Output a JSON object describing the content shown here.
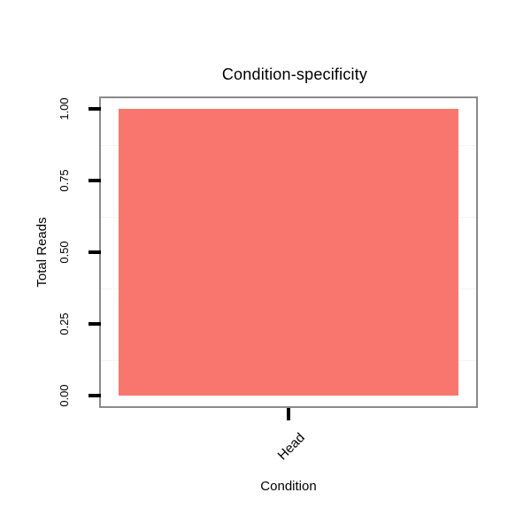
{
  "chart_data": {
    "type": "bar",
    "title": "Condition-specificity",
    "xlabel": "Condition",
    "ylabel": "Total Reads",
    "categories": [
      "Head"
    ],
    "values": [
      1.0
    ],
    "ylim": [
      -0.04,
      1.04
    ],
    "yticks": [
      0.0,
      0.25,
      0.5,
      0.75,
      1.0
    ],
    "ytick_labels": [
      "0.00",
      "0.25",
      "0.50",
      "0.75",
      "1.00"
    ],
    "minor_gridlines": [
      0.125,
      0.375,
      0.625,
      0.875
    ],
    "grid": "minor-horizontal-only",
    "legend_position": "none",
    "bar_fill_color": "#F8766D",
    "panel_border_color": "#8a8a8a",
    "gridline_color": "#f4f4f4",
    "tick_color": "#000000",
    "text_color": "#000000",
    "background_color": "#ffffff"
  }
}
